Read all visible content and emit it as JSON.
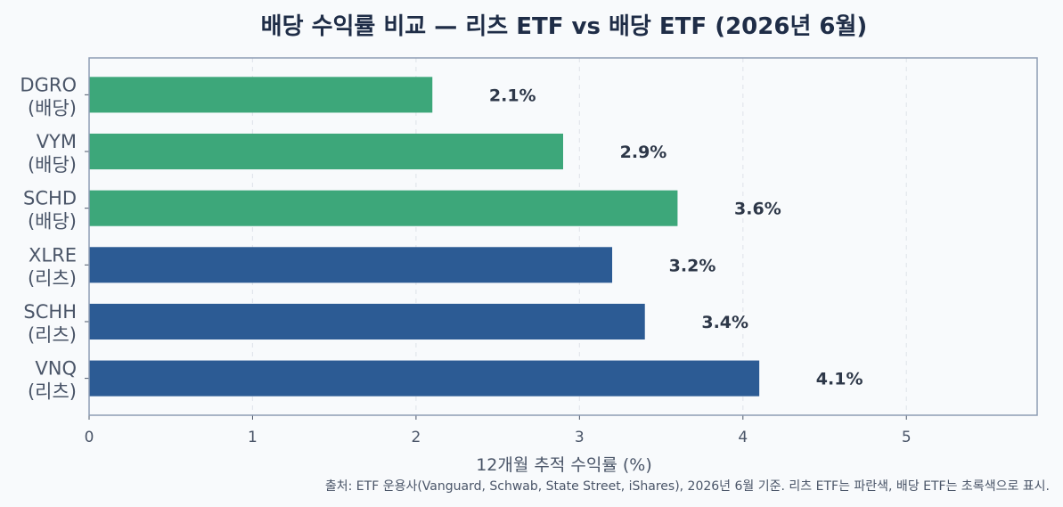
{
  "chart_data": {
    "type": "bar",
    "orientation": "horizontal",
    "title": "배당 수익률 비교 — 리츠 ETF vs 배당 ETF (2026년 6월)",
    "xlabel": "12개월 추적 수익률 (%)",
    "ylabel": "",
    "xlim": [
      0,
      5.8
    ],
    "xticks": [
      0,
      1,
      2,
      3,
      4,
      5
    ],
    "grid": "vertical-dashed",
    "categories": [
      {
        "ticker": "VNQ",
        "group": "(리츠)"
      },
      {
        "ticker": "SCHH",
        "group": "(리츠)"
      },
      {
        "ticker": "XLRE",
        "group": "(리츠)"
      },
      {
        "ticker": "SCHD",
        "group": "(배당)"
      },
      {
        "ticker": "VYM",
        "group": "(배당)"
      },
      {
        "ticker": "DGRO",
        "group": "(배당)"
      }
    ],
    "values": [
      4.1,
      3.4,
      3.2,
      3.6,
      2.9,
      2.1
    ],
    "data_labels": [
      "4.1%",
      "3.4%",
      "3.2%",
      "3.6%",
      "2.9%",
      "2.1%"
    ],
    "colors": [
      "#2c5b94",
      "#2c5b94",
      "#2c5b94",
      "#3da77a",
      "#3da77a",
      "#3da77a"
    ],
    "source_note": "출처: ETF 운용사(Vanguard, Schwab, State Street, iShares), 2026년 6월 기준. 리츠 ETF는 파란색, 배당 ETF는 초록색으로 표시."
  }
}
